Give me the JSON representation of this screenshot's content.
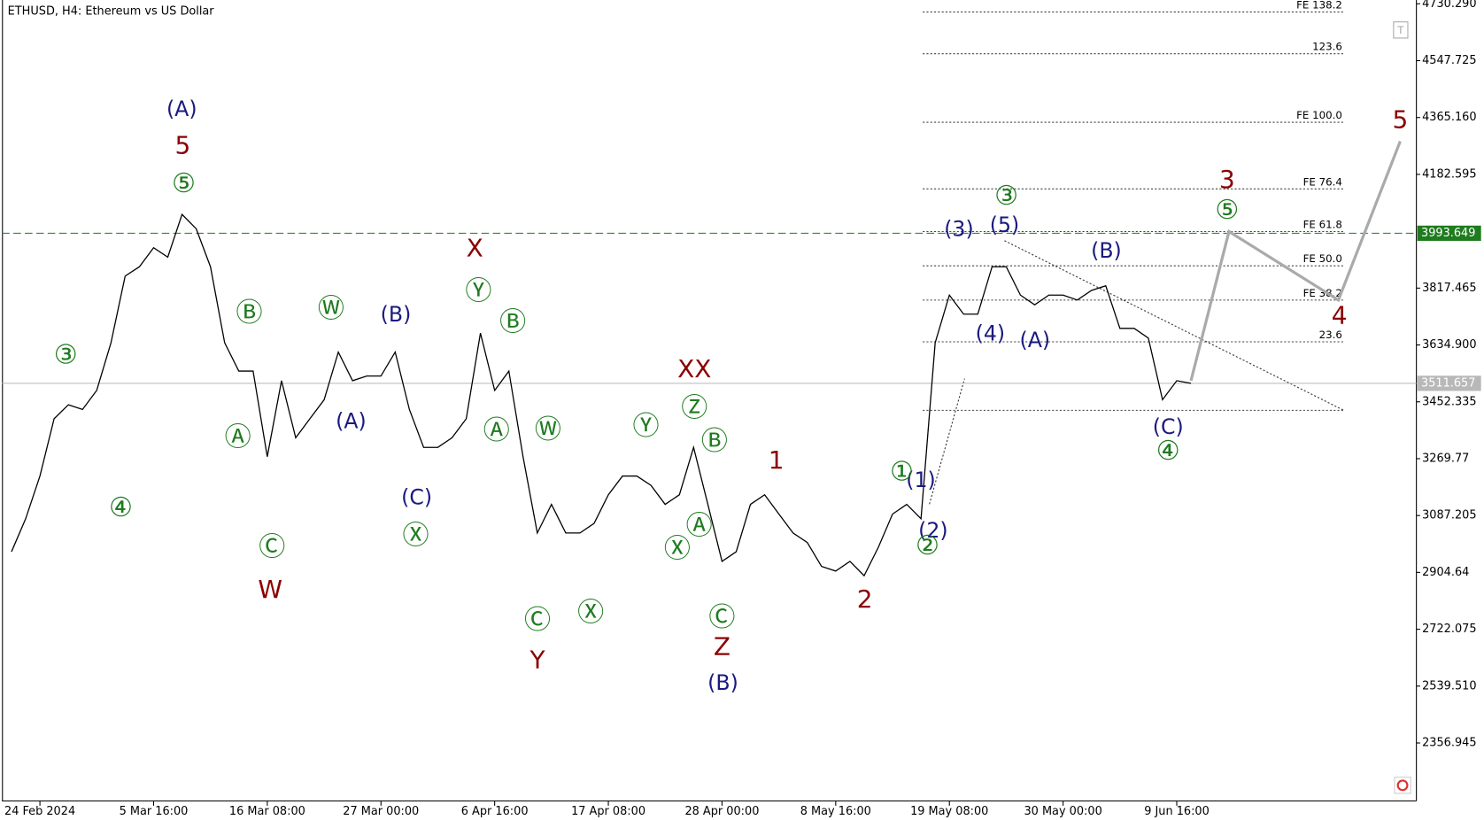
{
  "chart_data": {
    "type": "line",
    "title": "ETHUSD, H4:  Ethereum vs US Dollar",
    "categories": [
      null,
      null,
      "24 Feb 2024",
      null,
      null,
      null,
      null,
      null,
      null,
      null,
      "5 Mar 16:00",
      null,
      null,
      null,
      null,
      null,
      null,
      null,
      "16 Mar 08:00",
      null,
      null,
      null,
      null,
      null,
      null,
      null,
      "27 Mar 00:00",
      null,
      null,
      null,
      null,
      null,
      null,
      null,
      "6 Apr 16:00",
      null,
      null,
      null,
      null,
      null,
      null,
      null,
      "17 Apr 08:00",
      null,
      null,
      null,
      null,
      null,
      null,
      null,
      "28 Apr 00:00",
      null,
      null,
      null,
      null,
      null,
      null,
      null,
      "8 May 16:00",
      null,
      null,
      null,
      null,
      null,
      null,
      null,
      "19 May 08:00",
      null,
      null,
      null,
      null,
      null,
      null,
      null,
      "30 May 00:00",
      null,
      null,
      null,
      null,
      null,
      null,
      null,
      "9 Jun 16:00",
      null
    ],
    "values": [
      2971,
      3077,
      3214,
      3398,
      3443,
      3428,
      3489,
      3642,
      3856,
      3886,
      3947,
      3917,
      4054,
      4008,
      3886,
      3642,
      3551,
      3551,
      3276,
      3520,
      3337,
      3398,
      3459,
      3612,
      3520,
      3535,
      3535,
      3612,
      3428,
      3306,
      3306,
      3337,
      3398,
      3673,
      3489,
      3551,
      3276,
      3031,
      3123,
      3031,
      3031,
      3062,
      3154,
      3214,
      3214,
      3184,
      3123,
      3154,
      3306,
      3123,
      2940,
      2971,
      3123,
      3154,
      3092,
      3031,
      3001,
      2924,
      2909,
      2940,
      2894,
      2985,
      3092,
      3123,
      3077,
      3642,
      3795,
      3734,
      3734,
      3886,
      3886,
      3795,
      3764,
      3795,
      3795,
      3779,
      3810,
      3825,
      3688,
      3688,
      3657,
      3459,
      3520,
      3511.657
    ],
    "color": "#000000",
    "ylim": [
      2170.7,
      4742.5
    ],
    "yticks": [
      {
        "value": 4730.29,
        "label": "4730.290"
      },
      4547.725,
      {
        "value": 4365.16,
        "label": "4365.160"
      },
      4182.595,
      3817.465,
      {
        "value": 3634.9,
        "label": "3634.900"
      },
      3452.335,
      3269.77,
      3087.205,
      2904.64,
      2722.075,
      {
        "value": 2539.51,
        "label": "2539.510"
      },
      2356.945
    ],
    "price_lines": [
      {
        "value": 3993.649,
        "color": "#1e7b1e"
      },
      {
        "value": 3511.657,
        "color": "#b8b8b8"
      }
    ],
    "fib_levels": [
      {
        "value": 4704,
        "label": "FE 138.2"
      },
      {
        "value": 4570,
        "label": "123.6"
      },
      {
        "value": 4350,
        "label": "FE 100.0"
      },
      {
        "value": 4136,
        "label": "FE 76.4"
      },
      {
        "value": 3999,
        "label": "FE 61.8"
      },
      {
        "value": 3889,
        "label": "FE 50.0"
      },
      {
        "value": 3779,
        "label": "FE 38.2"
      },
      {
        "value": 3645,
        "label": "23.6"
      },
      {
        "value": 3425,
        "label": null
      }
    ],
    "projection": [
      3520,
      3999,
      3779,
      4289
    ],
    "wave_labels": [
      {
        "color": "#1a1a80",
        "labels": [
          "(A)",
          "(A)",
          "(B)",
          "(C)",
          "(B)",
          "(1)",
          "(2)",
          "(3)",
          "(5)",
          "(4)",
          "(A)",
          "(B)",
          "(C)"
        ]
      },
      {
        "color": "#8b0000",
        "labels": [
          "5",
          "W",
          "X",
          "Y",
          "XX",
          "Z",
          "1",
          "2",
          "3",
          "4",
          "5"
        ]
      },
      {
        "color": "#1e7b1e",
        "labels": [
          "③",
          "④",
          "⑤",
          "Ⓑ",
          "Ⓐ",
          "Ⓒ",
          "Ⓦ",
          "Ⓧ",
          "Ⓨ",
          "Ⓑ",
          "Ⓐ",
          "Ⓦ",
          "Ⓒ",
          "Ⓧ",
          "Ⓨ",
          "Ⓩ",
          "Ⓑ",
          "Ⓐ",
          "Ⓧ",
          "Ⓒ",
          "①",
          "②",
          "③",
          "⑤",
          "④"
        ]
      }
    ]
  }
}
